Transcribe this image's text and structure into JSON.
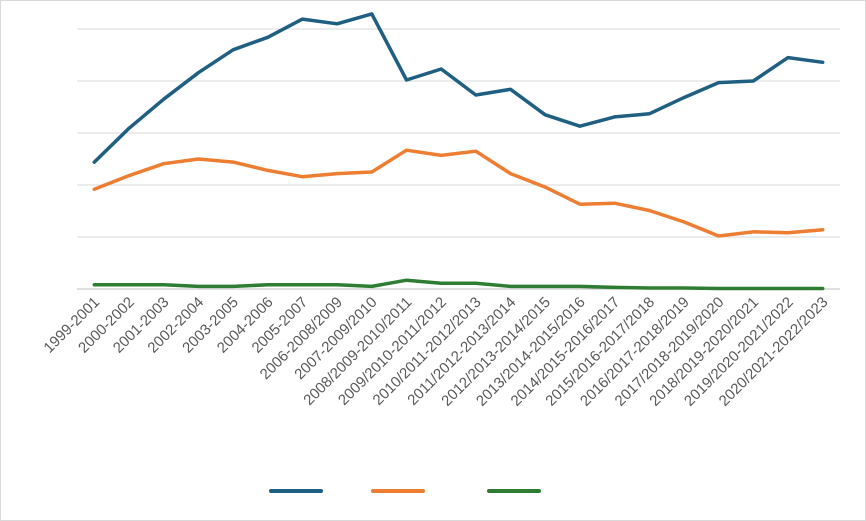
{
  "chart_data": {
    "type": "line",
    "categories": [
      "1999-2001",
      "2000-2002",
      "2001-2003",
      "2002-2004",
      "2003-2005",
      "2004-2006",
      "2005-2007",
      "2006-2008/2009",
      "2007-2009/2010",
      "2008/2009-2010/2011",
      "2009/2010-2011/2012",
      "2010/2011-2012/2013",
      "2011/2012-2013/2014",
      "2012/2013-2014/2015",
      "2013/2014-2015/2016",
      "2014/2015-2016/2017",
      "2015/2016-2017/2018",
      "2016/2017-2018/2019",
      "2017/2018-2019/2020",
      "2018/2019-2020/2021",
      "2019/2020-2021/2022",
      "2020/2021-2022/2023"
    ],
    "series": [
      {
        "color": "#1f5f82",
        "values": [
          24.4,
          30.9,
          36.5,
          41.6,
          46.0,
          48.4,
          51.9,
          51.0,
          52.9,
          40.2,
          42.3,
          37.3,
          38.4,
          33.5,
          31.3,
          33.1,
          33.7,
          36.8,
          39.7,
          40.0,
          44.5,
          43.6
        ]
      },
      {
        "color": "#ed7d31",
        "values": [
          19.2,
          21.8,
          24.1,
          25.0,
          24.4,
          22.8,
          21.6,
          22.2,
          22.5,
          26.7,
          25.7,
          26.5,
          22.2,
          19.6,
          16.3,
          16.5,
          15.1,
          12.9,
          10.2,
          11.0,
          10.8,
          11.4
        ]
      },
      {
        "color": "#2e7d32",
        "values": [
          0.8,
          0.8,
          0.8,
          0.5,
          0.5,
          0.8,
          0.8,
          0.8,
          0.5,
          1.7,
          1.1,
          1.1,
          0.5,
          0.5,
          0.5,
          0.3,
          0.2,
          0.2,
          0.1,
          0.1,
          0.1,
          0.1
        ]
      }
    ],
    "ylim": [
      0,
      55
    ],
    "gridlines": [
      0,
      10,
      20,
      30,
      40,
      50
    ],
    "grid": true,
    "legend": "bottom",
    "title": "",
    "xlabel": "",
    "ylabel": ""
  }
}
